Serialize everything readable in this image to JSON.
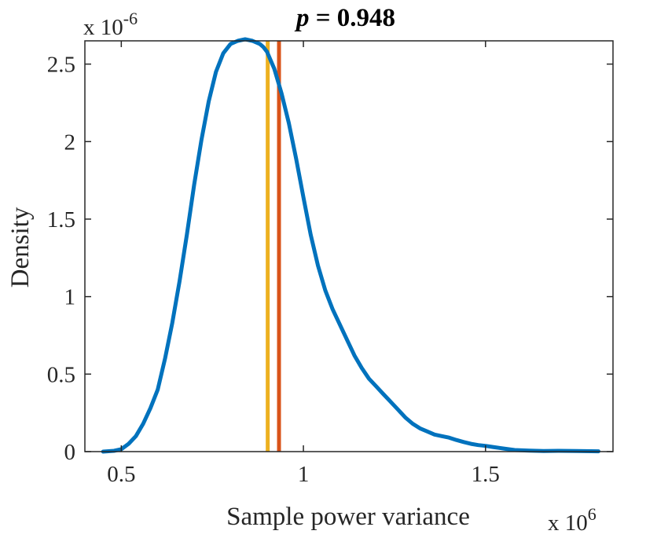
{
  "chart_data": {
    "type": "line",
    "title_var": "p",
    "title_rest": " = 0.948",
    "xlabel": "Sample power variance",
    "ylabel": "Density",
    "x_exponent_base": "x 10",
    "x_exponent_power": "6",
    "y_exponent_base": "x 10",
    "y_exponent_power": "-6",
    "xlim": [
      0.4,
      1.85
    ],
    "ylim": [
      0,
      2.65
    ],
    "xticks": [
      0.5,
      1,
      1.5
    ],
    "xtick_labels": [
      "0.5",
      "1",
      "1.5"
    ],
    "yticks": [
      0,
      0.5,
      1,
      1.5,
      2,
      2.5
    ],
    "ytick_labels": [
      "0",
      "0.5",
      "1",
      "1.5",
      "2",
      "2.5"
    ],
    "grid": false,
    "series": [
      {
        "color": "#0072BD",
        "x": [
          0.45,
          0.48,
          0.5,
          0.52,
          0.54,
          0.56,
          0.58,
          0.6,
          0.62,
          0.64,
          0.66,
          0.68,
          0.7,
          0.72,
          0.74,
          0.76,
          0.78,
          0.8,
          0.82,
          0.84,
          0.86,
          0.88,
          0.89,
          0.9,
          0.92,
          0.94,
          0.96,
          0.98,
          1.0,
          1.02,
          1.04,
          1.06,
          1.08,
          1.1,
          1.12,
          1.14,
          1.16,
          1.18,
          1.2,
          1.22,
          1.24,
          1.26,
          1.28,
          1.3,
          1.32,
          1.34,
          1.36,
          1.38,
          1.4,
          1.42,
          1.44,
          1.46,
          1.48,
          1.5,
          1.52,
          1.55,
          1.58,
          1.62,
          1.66,
          1.7,
          1.75,
          1.81
        ],
        "y": [
          0.0,
          0.005,
          0.015,
          0.05,
          0.1,
          0.18,
          0.28,
          0.4,
          0.6,
          0.83,
          1.1,
          1.4,
          1.72,
          2.01,
          2.26,
          2.45,
          2.57,
          2.63,
          2.65,
          2.66,
          2.65,
          2.63,
          2.61,
          2.58,
          2.47,
          2.31,
          2.12,
          1.89,
          1.64,
          1.4,
          1.2,
          1.04,
          0.92,
          0.82,
          0.72,
          0.62,
          0.54,
          0.47,
          0.42,
          0.37,
          0.32,
          0.27,
          0.22,
          0.18,
          0.15,
          0.13,
          0.11,
          0.1,
          0.09,
          0.075,
          0.062,
          0.05,
          0.042,
          0.037,
          0.03,
          0.02,
          0.01,
          0.006,
          0.004,
          0.005,
          0.004,
          0.002
        ]
      }
    ],
    "vlines": [
      {
        "x": 0.902,
        "color": "#EDB120"
      },
      {
        "x": 0.933,
        "color": "#D95319"
      }
    ]
  }
}
